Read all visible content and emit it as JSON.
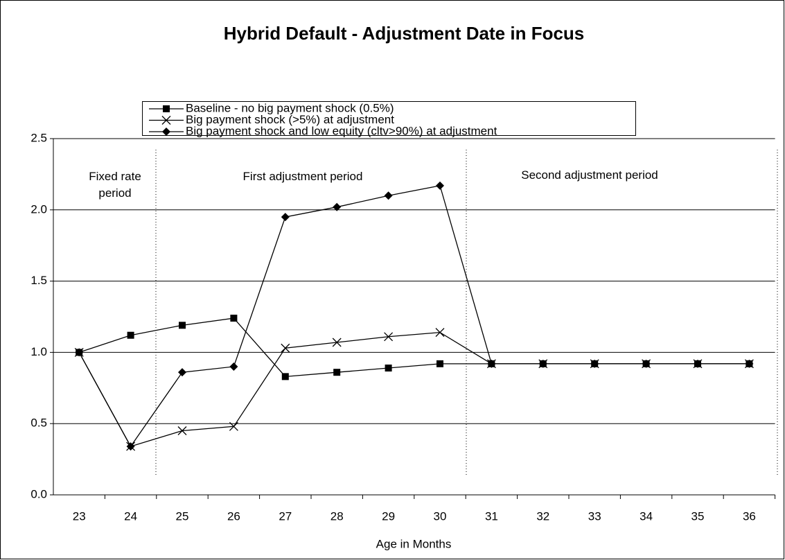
{
  "chart_data": {
    "type": "line",
    "title": "Hybrid Default - Adjustment Date in Focus",
    "xlabel": "Age in Months",
    "categories": [
      "23",
      "24",
      "25",
      "26",
      "27",
      "28",
      "29",
      "30",
      "31",
      "32",
      "33",
      "34",
      "35",
      "36"
    ],
    "series": [
      {
        "name": "Baseline - no big payment shock (0.5%)",
        "color": "#000000",
        "marker": "square",
        "values": [
          1.0,
          1.12,
          1.19,
          1.24,
          0.83,
          0.86,
          0.89,
          0.92,
          0.92,
          0.92,
          0.92,
          0.92,
          0.92,
          0.92
        ]
      },
      {
        "name": "Big payment shock (>5%) at adjustment",
        "color": "#000000",
        "marker": "x",
        "values": [
          1.0,
          0.34,
          0.45,
          0.48,
          1.03,
          1.07,
          1.11,
          1.14,
          0.92,
          0.92,
          0.92,
          0.92,
          0.92,
          0.92
        ]
      },
      {
        "name": "Big payment shock and low equity (cltv>90%) at adjustment",
        "color": "#000000",
        "marker": "diamond",
        "values": [
          1.0,
          0.34,
          0.86,
          0.9,
          1.95,
          2.02,
          2.1,
          2.17,
          0.92,
          0.92,
          0.92,
          0.92,
          0.92,
          0.92
        ]
      }
    ],
    "annotations": [
      "Fixed rate period",
      "First adjustment period",
      "Second adjustment period"
    ],
    "ylim": [
      0,
      2.5
    ],
    "yticks": [
      {
        "value": 0,
        "label": "0.0"
      },
      0.5,
      {
        "value": 1,
        "label": "1.0"
      },
      1.5,
      {
        "value": 2,
        "label": "2.0"
      },
      2.5
    ],
    "grid": true
  }
}
